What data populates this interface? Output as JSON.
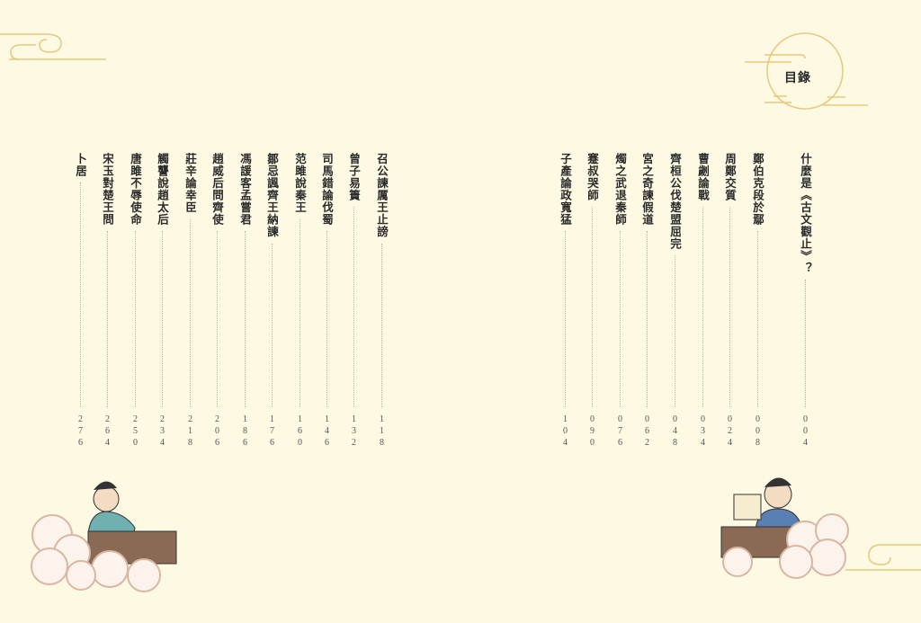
{
  "heading": "目錄",
  "right_page": [
    {
      "title": "什麼是《古文觀止》？",
      "page": "004"
    },
    {
      "title": "鄭伯克段於鄢",
      "page": "008"
    },
    {
      "title": "周鄭交質",
      "page": "024"
    },
    {
      "title": "曹劌論戰",
      "page": "034"
    },
    {
      "title": "齊桓公伐楚盟屈完",
      "page": "048"
    },
    {
      "title": "宮之奇諫假道",
      "page": "062"
    },
    {
      "title": "燭之武退秦師",
      "page": "076"
    },
    {
      "title": "蹇叔哭師",
      "page": "090"
    },
    {
      "title": "子產論政寬猛",
      "page": "104"
    }
  ],
  "left_page": [
    {
      "title": "召公諫厲王止謗",
      "page": "118"
    },
    {
      "title": "曾子易簀",
      "page": "132"
    },
    {
      "title": "司馬錯論伐蜀",
      "page": "146"
    },
    {
      "title": "范雎說秦王",
      "page": "160"
    },
    {
      "title": "鄒忌諷齊王納諫",
      "page": "176"
    },
    {
      "title": "馮諼客孟嘗君",
      "page": "186"
    },
    {
      "title": "趙威后問齊使",
      "page": "206"
    },
    {
      "title": "莊辛論幸臣",
      "page": "218"
    },
    {
      "title": "觸讋說趙太后",
      "page": "234"
    },
    {
      "title": "唐雎不辱使命",
      "page": "250"
    },
    {
      "title": "宋玉對楚王問",
      "page": "264"
    },
    {
      "title": "卜居",
      "page": "276"
    }
  ],
  "colors": {
    "background": "#fdf9e2",
    "accent": "#e8c77e"
  }
}
